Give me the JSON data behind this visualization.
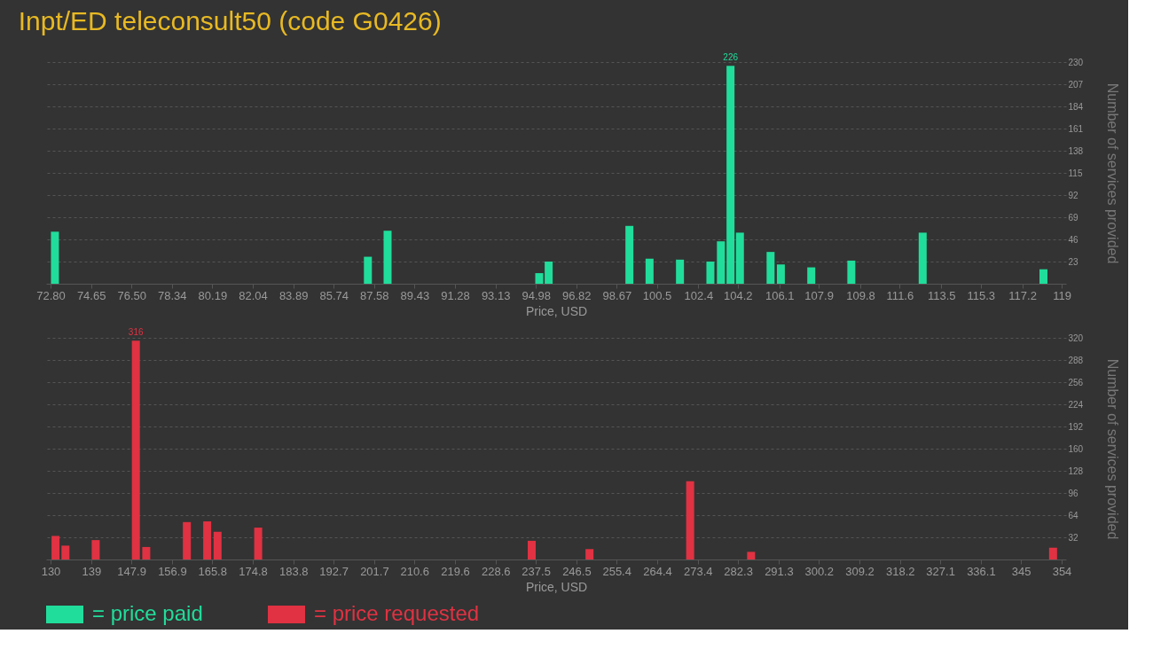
{
  "chart_data": [
    {
      "type": "bar",
      "title": "Inpt/ED teleconsult50 (code G0426)",
      "xlabel": "Price, USD",
      "ylabel": "Number of services provided",
      "series": [
        {
          "name": "= price paid",
          "color": "#21dd9b",
          "x": [
            73.0,
            87.3,
            88.2,
            95.13,
            95.56,
            99.25,
            100.17,
            101.56,
            102.95,
            103.43,
            103.87,
            104.3,
            105.7,
            106.17,
            107.56,
            109.39,
            112.65,
            118.17
          ],
          "values": [
            54,
            28,
            55,
            11,
            23,
            60,
            26,
            25,
            23,
            44,
            226,
            53,
            33,
            20,
            17,
            24,
            53,
            15
          ],
          "value_labels": [
            null,
            null,
            null,
            null,
            null,
            null,
            null,
            null,
            null,
            null,
            "226",
            null,
            null,
            null,
            null,
            null,
            null,
            null
          ]
        }
      ],
      "xlim": [
        72.8,
        119
      ],
      "xticks": [
        {
          "value": 72.8,
          "label": "72.80"
        },
        74.65,
        {
          "value": 76.5,
          "label": "76.50"
        },
        78.34,
        80.19,
        82.04,
        83.89,
        85.74,
        87.58,
        89.43,
        91.28,
        93.13,
        94.98,
        96.82,
        98.67,
        100.5,
        102.4,
        104.2,
        106.1,
        107.9,
        109.8,
        111.6,
        113.5,
        115.3,
        117.2,
        119
      ],
      "ylim": [
        0,
        230
      ],
      "yticks": [
        23,
        46,
        69,
        92,
        115,
        138,
        161,
        184,
        207,
        230
      ],
      "grid": "y",
      "legend": "bottom left"
    },
    {
      "type": "bar",
      "xlabel": "Price, USD",
      "ylabel": "Number of services provided",
      "series": [
        {
          "name": "= price requested",
          "color": "#e03242",
          "x": [
            131.1,
            133.3,
            140.0,
            148.9,
            151.2,
            160.2,
            164.7,
            167.0,
            176.0,
            236.6,
            249.4,
            271.7,
            285.2,
            352.1
          ],
          "values": [
            34,
            20,
            28,
            316,
            18,
            54,
            55,
            40,
            46,
            27,
            15,
            113,
            11,
            17
          ],
          "value_labels": [
            null,
            null,
            null,
            "316",
            null,
            null,
            null,
            null,
            null,
            null,
            null,
            null,
            null,
            null
          ]
        }
      ],
      "xlim": [
        130,
        354
      ],
      "xticks": [
        130,
        139,
        147.9,
        156.9,
        165.8,
        174.8,
        183.8,
        192.7,
        201.7,
        210.6,
        219.6,
        228.6,
        237.5,
        246.5,
        255.4,
        264.4,
        273.4,
        282.3,
        291.3,
        300.2,
        309.2,
        318.2,
        327.1,
        336.1,
        345,
        354
      ],
      "ylim": [
        0,
        320
      ],
      "yticks": [
        32,
        64,
        96,
        128,
        160,
        192,
        224,
        256,
        288,
        320
      ],
      "grid": "y",
      "legend": "bottom left"
    }
  ]
}
